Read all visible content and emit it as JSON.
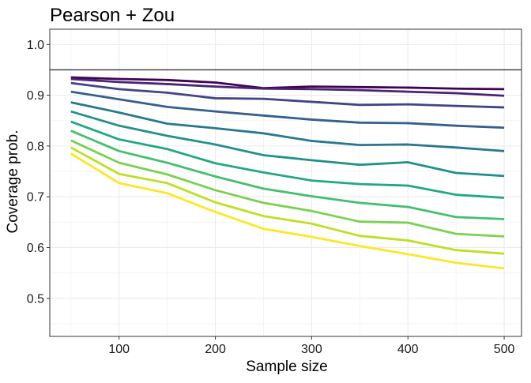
{
  "chart_data": {
    "type": "line",
    "title": "Pearson + Zou",
    "xlabel": "Sample size",
    "ylabel": "Coverage prob.",
    "xlim": [
      28,
      518
    ],
    "ylim": [
      0.425,
      1.03
    ],
    "x_ticks": [
      100,
      200,
      300,
      400,
      500
    ],
    "y_ticks": [
      0.5,
      0.6,
      0.7,
      0.8,
      0.9,
      1.0
    ],
    "y_tick_labels": [
      "0.5",
      "0.6",
      "0.7",
      "0.8",
      "0.9",
      "1.0"
    ],
    "reference_line": 0.95,
    "reference_color": "#333333",
    "grid": true,
    "legend": "none",
    "x": [
      50,
      100,
      150,
      200,
      250,
      300,
      350,
      400,
      450,
      500
    ],
    "series": [
      {
        "color": "#440154",
        "values": [
          0.935,
          0.932,
          0.93,
          0.925,
          0.914,
          0.917,
          0.916,
          0.915,
          0.913,
          0.912
        ]
      },
      {
        "color": "#482475",
        "values": [
          0.932,
          0.926,
          0.922,
          0.917,
          0.913,
          0.912,
          0.91,
          0.907,
          0.904,
          0.899
        ]
      },
      {
        "color": "#414487",
        "values": [
          0.924,
          0.912,
          0.905,
          0.894,
          0.893,
          0.887,
          0.881,
          0.882,
          0.879,
          0.876
        ]
      },
      {
        "color": "#355f8d",
        "values": [
          0.907,
          0.892,
          0.877,
          0.868,
          0.86,
          0.852,
          0.846,
          0.845,
          0.84,
          0.836
        ]
      },
      {
        "color": "#2a788e",
        "values": [
          0.886,
          0.866,
          0.844,
          0.835,
          0.825,
          0.81,
          0.802,
          0.803,
          0.797,
          0.79
        ]
      },
      {
        "color": "#21918c",
        "values": [
          0.868,
          0.84,
          0.82,
          0.803,
          0.782,
          0.772,
          0.763,
          0.768,
          0.747,
          0.741
        ]
      },
      {
        "color": "#22a884",
        "values": [
          0.848,
          0.813,
          0.794,
          0.766,
          0.748,
          0.732,
          0.725,
          0.722,
          0.704,
          0.698
        ]
      },
      {
        "color": "#44bf70",
        "values": [
          0.83,
          0.79,
          0.767,
          0.74,
          0.716,
          0.701,
          0.688,
          0.68,
          0.66,
          0.656
        ]
      },
      {
        "color": "#7ad151",
        "values": [
          0.811,
          0.767,
          0.744,
          0.713,
          0.688,
          0.672,
          0.651,
          0.649,
          0.627,
          0.622
        ]
      },
      {
        "color": "#bddf26",
        "values": [
          0.797,
          0.745,
          0.727,
          0.689,
          0.662,
          0.647,
          0.623,
          0.614,
          0.595,
          0.588
        ]
      },
      {
        "color": "#fde725",
        "values": [
          0.785,
          0.727,
          0.707,
          0.67,
          0.637,
          0.621,
          0.603,
          0.587,
          0.57,
          0.559
        ]
      }
    ]
  }
}
